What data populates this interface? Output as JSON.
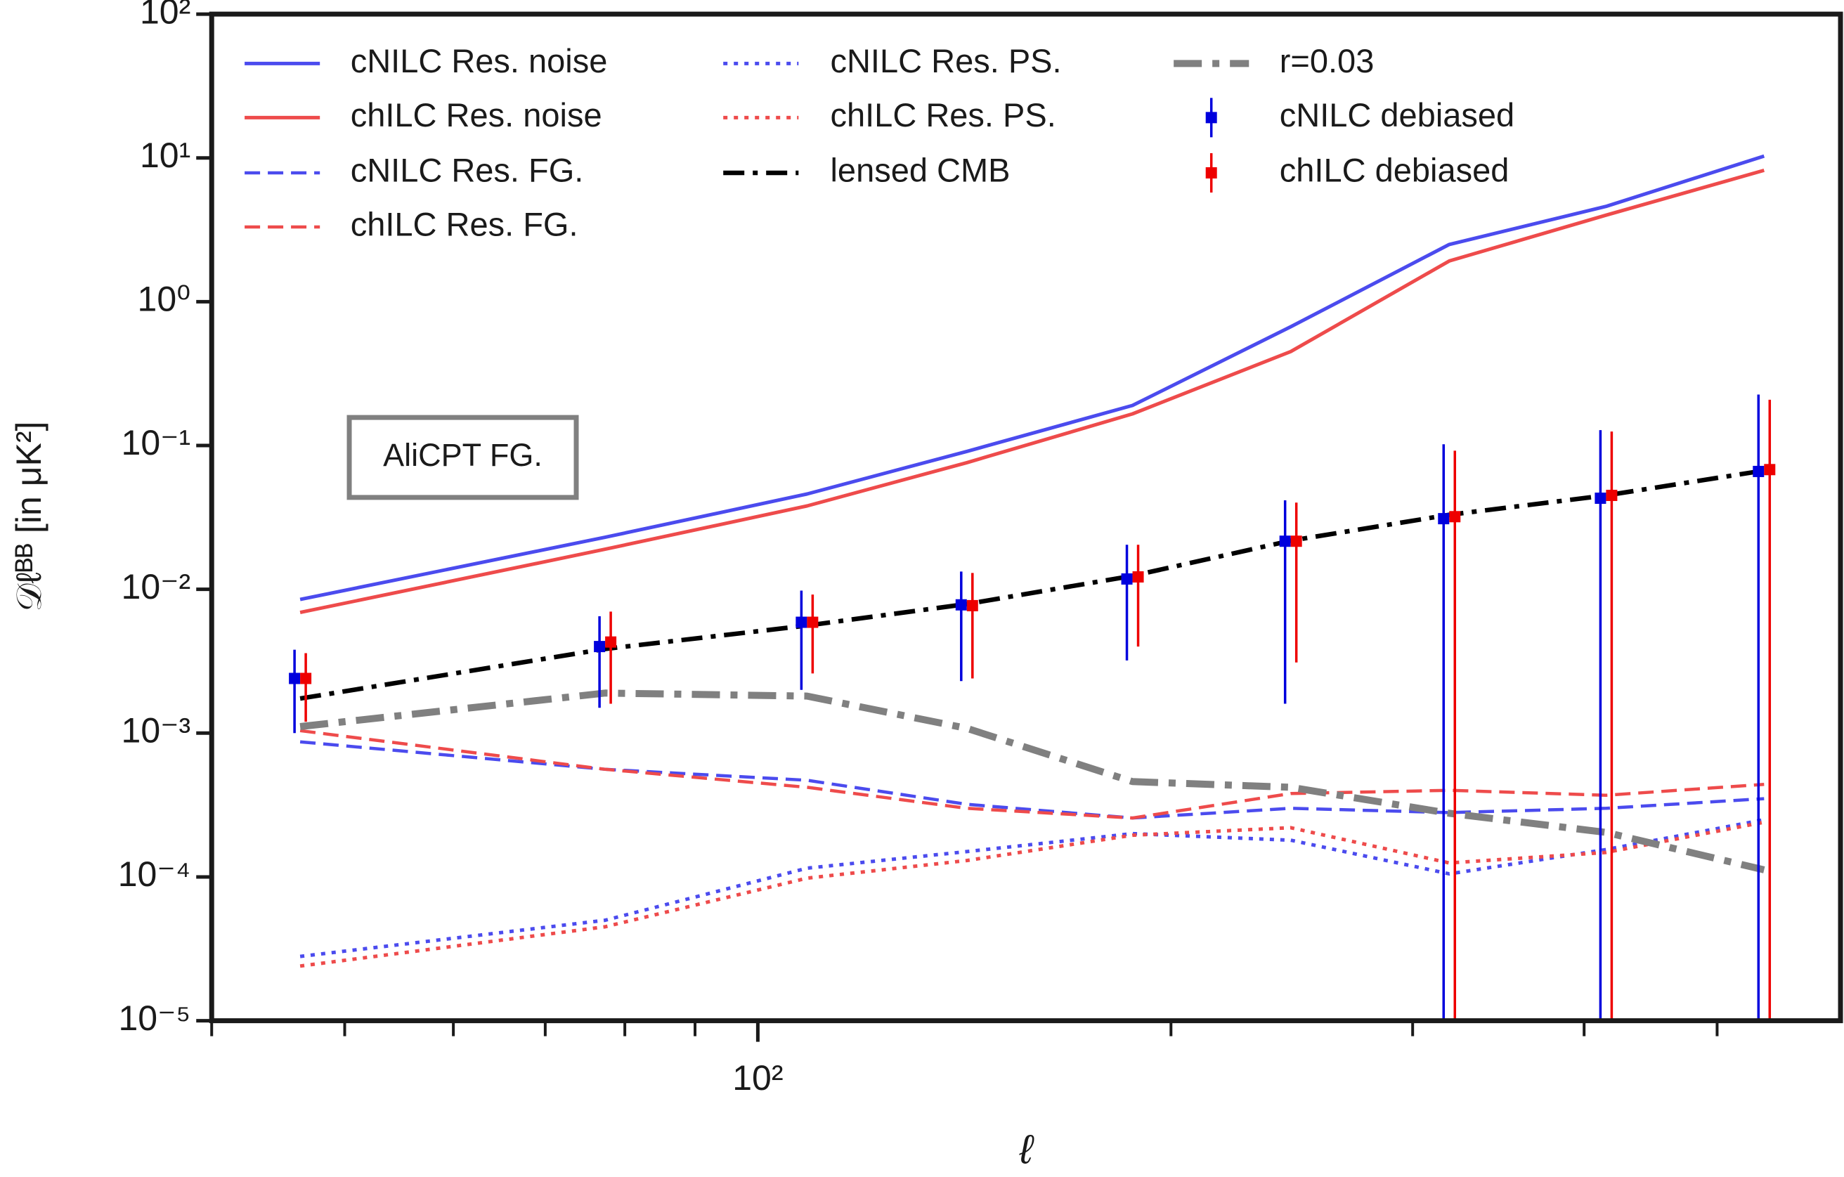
{
  "chart_data": {
    "type": "line",
    "xlabel": "ℓ",
    "ylabel": "𝒟ℓᴮᴮ [in μK²]",
    "annotation": "AliCPT FG.",
    "xscale": "log",
    "yscale": "log",
    "xlim": [
      40,
      615
    ],
    "ylim": [
      1e-05,
      100
    ],
    "xticks": [
      {
        "value": 100,
        "label": "10²"
      }
    ],
    "xminorticks": [
      40,
      50,
      60,
      70,
      80,
      90,
      200,
      300,
      400,
      500
    ],
    "yticks": [
      {
        "value": 1e-05,
        "label": "10⁻⁵"
      },
      {
        "value": 0.0001,
        "label": "10⁻⁴"
      },
      {
        "value": 0.001,
        "label": "10⁻³"
      },
      {
        "value": 0.01,
        "label": "10⁻²"
      },
      {
        "value": 0.1,
        "label": "10⁻¹"
      },
      {
        "value": 1,
        "label": "10⁰"
      },
      {
        "value": 10,
        "label": "10¹"
      },
      {
        "value": 100,
        "label": "10²"
      }
    ],
    "x": [
      46.4,
      77.4,
      108.6,
      142,
      187.5,
      244.5,
      319,
      415,
      541
    ],
    "series": [
      {
        "name": "cNILC Res. noise",
        "color": "#4b4bee",
        "style": "solid",
        "values": [
          0.0085,
          0.023,
          0.046,
          0.091,
          0.19,
          0.67,
          2.5,
          4.6,
          10.3
        ]
      },
      {
        "name": "chILC Res. noise",
        "color": "#ee4b4b",
        "style": "solid",
        "values": [
          0.0069,
          0.019,
          0.038,
          0.076,
          0.166,
          0.45,
          1.92,
          4.0,
          8.2
        ]
      },
      {
        "name": "cNILC Res. FG.",
        "color": "#4b4bee",
        "style": "dashed",
        "values": [
          0.00087,
          0.00056,
          0.00047,
          0.00032,
          0.000257,
          0.0003,
          0.00028,
          0.0003,
          0.00035
        ]
      },
      {
        "name": "chILC Res. FG.",
        "color": "#ee4b4b",
        "style": "dashed",
        "values": [
          0.00104,
          0.00056,
          0.00042,
          0.0003,
          0.000257,
          0.00038,
          0.0004,
          0.00037,
          0.00044
        ]
      },
      {
        "name": "cNILC Res. PS.",
        "color": "#4b4bee",
        "style": "dotted",
        "values": [
          2.8e-05,
          5e-05,
          0.000115,
          0.00015,
          0.0002,
          0.00018,
          0.000105,
          0.000155,
          0.00025
        ]
      },
      {
        "name": "chILC Res. PS.",
        "color": "#ee4b4b",
        "style": "dotted",
        "values": [
          2.4e-05,
          4.5e-05,
          9.8e-05,
          0.00013,
          0.000195,
          0.00022,
          0.000125,
          0.000148,
          0.00024
        ]
      },
      {
        "name": "lensed CMB",
        "color": "#000000",
        "style": "dashdot",
        "values": [
          0.00174,
          0.00385,
          0.0056,
          0.0079,
          0.0124,
          0.0218,
          0.033,
          0.045,
          0.067
        ]
      },
      {
        "name": "r=0.03",
        "color": "#808080",
        "style": "dashdot-thick",
        "values": [
          0.00111,
          0.0019,
          0.00181,
          0.00108,
          0.00046,
          0.00042,
          0.000277,
          0.000204,
          0.000112
        ]
      },
      {
        "name": "cNILC debiased",
        "color": "#0000dd",
        "style": "errorbar",
        "values": [
          0.0024,
          0.004,
          0.0059,
          0.0078,
          0.0118,
          0.0216,
          0.031,
          0.043,
          0.066
        ],
        "errors": [
          0.0014,
          0.0025,
          0.0039,
          0.0055,
          0.0086,
          0.02,
          0.071,
          0.085,
          0.16
        ]
      },
      {
        "name": "chILC debiased",
        "color": "#ee0000",
        "style": "errorbar",
        "values": [
          0.0024,
          0.0043,
          0.0059,
          0.0077,
          0.0122,
          0.0216,
          0.032,
          0.045,
          0.068
        ],
        "errors": [
          0.0012,
          0.0027,
          0.0033,
          0.0053,
          0.0082,
          0.0185,
          0.06,
          0.08,
          0.14
        ]
      }
    ]
  }
}
